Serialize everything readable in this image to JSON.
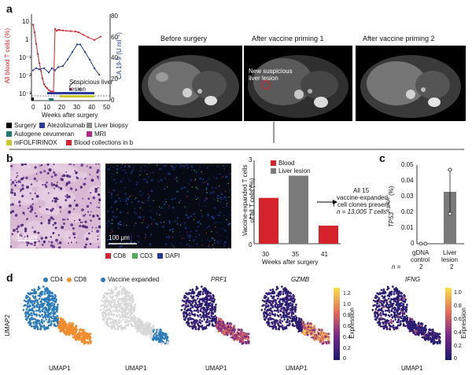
{
  "panels": {
    "a": "a",
    "b": "b",
    "c": "c",
    "d": "d"
  },
  "panel_a": {
    "chart_data": {
      "type": "line",
      "xlabel": "Weeks after surgery",
      "ylabel_left": "All blood T cells (%)",
      "ylabel_right": "CA 19-9 (U ml⁻¹)",
      "x_ticks": [
        0,
        10,
        20,
        30,
        40,
        50
      ],
      "y_left_ticks": [
        "10",
        "1",
        "10⁻¹",
        "10⁻²",
        "10⁻³"
      ],
      "y_right_ticks": [
        0,
        20,
        40,
        60,
        80
      ],
      "xlim": [
        0,
        50
      ],
      "ylim_right": [
        0,
        80
      ],
      "ylim_left_log10": [
        -3,
        1
      ],
      "series": [
        {
          "name": "All blood T cells (%)",
          "color": "#d6222a",
          "axis": "left",
          "x": [
            1,
            2,
            3,
            4,
            5,
            6,
            7,
            8,
            9,
            10,
            11,
            12,
            13,
            14,
            15,
            16,
            17,
            18,
            20,
            22,
            25,
            28,
            30,
            33,
            36,
            40,
            44
          ],
          "y": [
            5,
            2,
            0.5,
            0.15,
            0.05,
            0.02,
            0.008,
            0.004,
            0.003,
            0.0025,
            0.002,
            0.0018,
            0.0017,
            0.0016,
            3,
            2.4,
            2.7,
            2.6,
            2.5,
            2.4,
            2.3,
            2.2,
            2.0,
            1.5,
            1.1,
            0.8,
            1.2
          ]
        },
        {
          "name": "CA 19-9 (U ml⁻¹)",
          "color": "#1f3a93",
          "axis": "right",
          "x": [
            1,
            3,
            5,
            8,
            11,
            13,
            15,
            17,
            20,
            23,
            26,
            29,
            31,
            34,
            37,
            40,
            43
          ],
          "y": [
            28,
            30,
            29,
            30,
            26,
            30,
            28,
            31,
            32,
            38,
            45,
            52,
            52,
            45,
            38,
            30,
            24
          ]
        }
      ],
      "annotations": [
        "Suspicious liver lesion"
      ]
    },
    "legend": [
      {
        "label": "Surgery",
        "color": "#000000"
      },
      {
        "label": "Atezolizumab",
        "color": "#2a3d9c"
      },
      {
        "label": "Liver biopsy",
        "color": "#8c8c8c"
      },
      {
        "label": "Autogene cevumeran",
        "color": "#1d7a6f"
      },
      {
        "label": "MRI",
        "color": "#b2288c"
      },
      {
        "label": "mFOLFIRINOX",
        "color": "#c9c92c"
      },
      {
        "label": "Blood collections in b",
        "color": "#d6222a"
      }
    ],
    "legend_bold": "b",
    "mri_titles": [
      "Before surgery",
      "After vaccine priming 1",
      "After vaccine priming 2"
    ],
    "mri_annotation": "New suspicious\nliver lesion"
  },
  "panel_b": {
    "scale_bar_1": "100 μm",
    "scale_bar_2": "100 μm",
    "if_legend": [
      {
        "label": "CD8",
        "color": "#d6222a"
      },
      {
        "label": "CD3",
        "color": "#4caf50"
      },
      {
        "label": "DAPI",
        "color": "#1f3a93"
      }
    ],
    "chart_data": {
      "type": "bar",
      "categories": [
        "30",
        "35",
        "41"
      ],
      "values": [
        1.65,
        2.45,
        0.65
      ],
      "colors": [
        "#d6222a",
        "#7a7a7a",
        "#d6222a"
      ],
      "ylim": [
        0,
        3
      ],
      "y_ticks": [
        0,
        1,
        2,
        3
      ],
      "xlabel": "Weeks after surgery",
      "ylabel": "Vaccine-expanded T cells\nof all T cells (%)",
      "legend": [
        {
          "label": "Blood",
          "color": "#d6222a"
        },
        {
          "label": "Liver lesion",
          "color": "#7a7a7a"
        }
      ],
      "annotation": [
        "All 15",
        "vaccine-expanded",
        "T cell clones present",
        "n = 13,005 T cells"
      ]
    }
  },
  "panel_c": {
    "chart_data": {
      "type": "bar",
      "categories": [
        "gDNA control",
        "Liver lesion"
      ],
      "values": [
        0.0,
        0.033
      ],
      "points": [
        [
          0.0,
          0.0
        ],
        [
          0.047,
          0.019
        ]
      ],
      "ylim": [
        0,
        0.05
      ],
      "y_ticks": [
        "0",
        "0.01",
        "0.02",
        "0.03",
        "0.04",
        "0.05"
      ],
      "ylabel": "TP53 (R175H) (%)",
      "n_label": "n =",
      "n_values": [
        "2",
        "2"
      ],
      "category_lines": [
        [
          "gDNA",
          "control"
        ],
        [
          "Liver",
          "lesion"
        ]
      ]
    },
    "ylabel_gene": "TP53",
    "ylabel_sup": "R175H",
    "ylabel_unit": " (%)"
  },
  "panel_d": {
    "legend_1": [
      {
        "label": "CD4",
        "color": "#2b7bb9"
      },
      {
        "label": "CD8",
        "color": "#f08c2a"
      }
    ],
    "legend_2": [
      {
        "label": "Vaccine expanded",
        "color": "#2b7bb9"
      }
    ],
    "titles": [
      "PRF1",
      "GZMB",
      "IFNG"
    ],
    "ylabel": "UMAP2",
    "xlabel": "UMAP1",
    "colorbar_label": "Expression",
    "colorbar_1_ticks": [
      "1.2",
      "1.0",
      "0.8",
      "0.6",
      "0.4",
      "0.2",
      "0"
    ],
    "colorbar_2_ticks": [
      "1.0",
      "0.8",
      "0.6",
      "0.4",
      "0.2",
      "0"
    ]
  }
}
